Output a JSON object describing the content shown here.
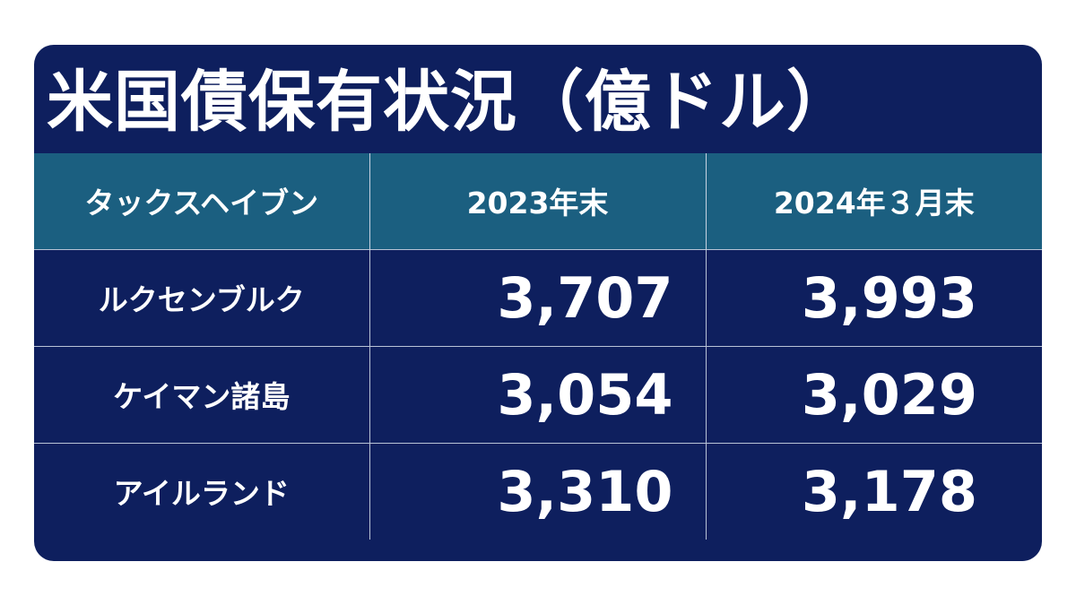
{
  "title": "米国債保有状況（億ドル）",
  "chart_data": {
    "type": "table",
    "columns": [
      "タックスヘイブン",
      "2023年末",
      "2024年３月末"
    ],
    "rows": [
      {
        "name": "ルクセンブルク",
        "v2023": "3,707",
        "v2024": "3,993"
      },
      {
        "name": "ケイマン諸島",
        "v2023": "3,054",
        "v2024": "3,029"
      },
      {
        "name": "アイルランド",
        "v2023": "3,310",
        "v2024": "3,178"
      }
    ]
  },
  "colors": {
    "card_background": "#0e1f5e",
    "header_background": "#1b5f80",
    "text": "#ffffff",
    "grid_lines": "#b9c3d6"
  }
}
